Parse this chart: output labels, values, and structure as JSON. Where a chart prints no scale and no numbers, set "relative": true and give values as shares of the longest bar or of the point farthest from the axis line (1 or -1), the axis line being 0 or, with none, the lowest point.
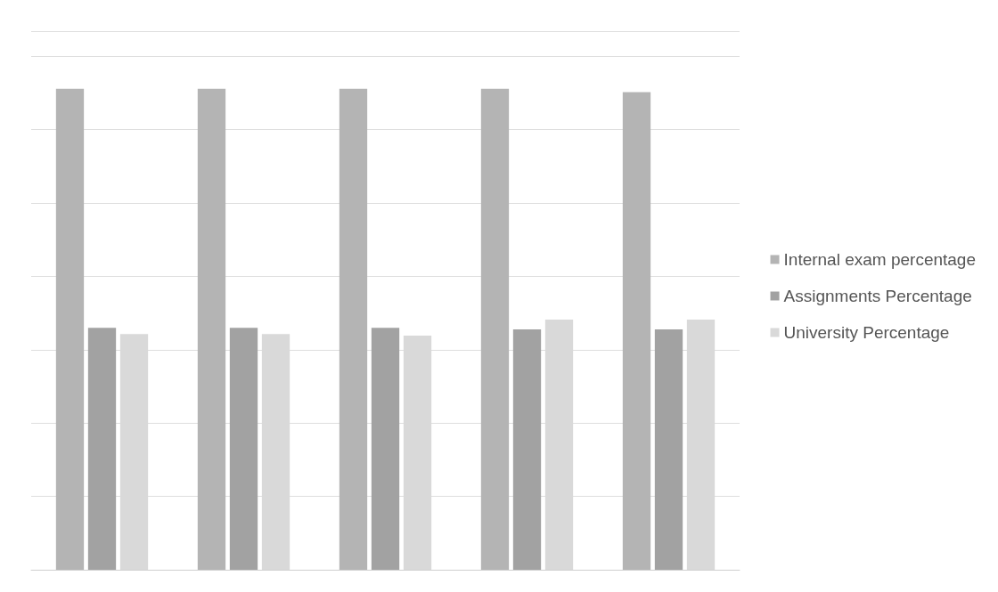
{
  "chart_data": {
    "type": "bar",
    "relative": true,
    "categories": [
      null,
      null,
      null,
      null,
      null
    ],
    "series": [
      {
        "name": "Internal exam percentage",
        "color": "#b4b4b4",
        "values": [
          1,
          1,
          1,
          1,
          0.993
        ]
      },
      {
        "name": "Assignments Percentage",
        "color": "#a2a2a2",
        "values": [
          0.503,
          0.503,
          0.503,
          0.5,
          0.5
        ]
      },
      {
        "name": "University Percentage",
        "color": "#d9d9d9",
        "values": [
          0.49,
          0.49,
          0.487,
          0.52,
          0.52
        ]
      }
    ],
    "grid": "y",
    "legend": "right"
  }
}
